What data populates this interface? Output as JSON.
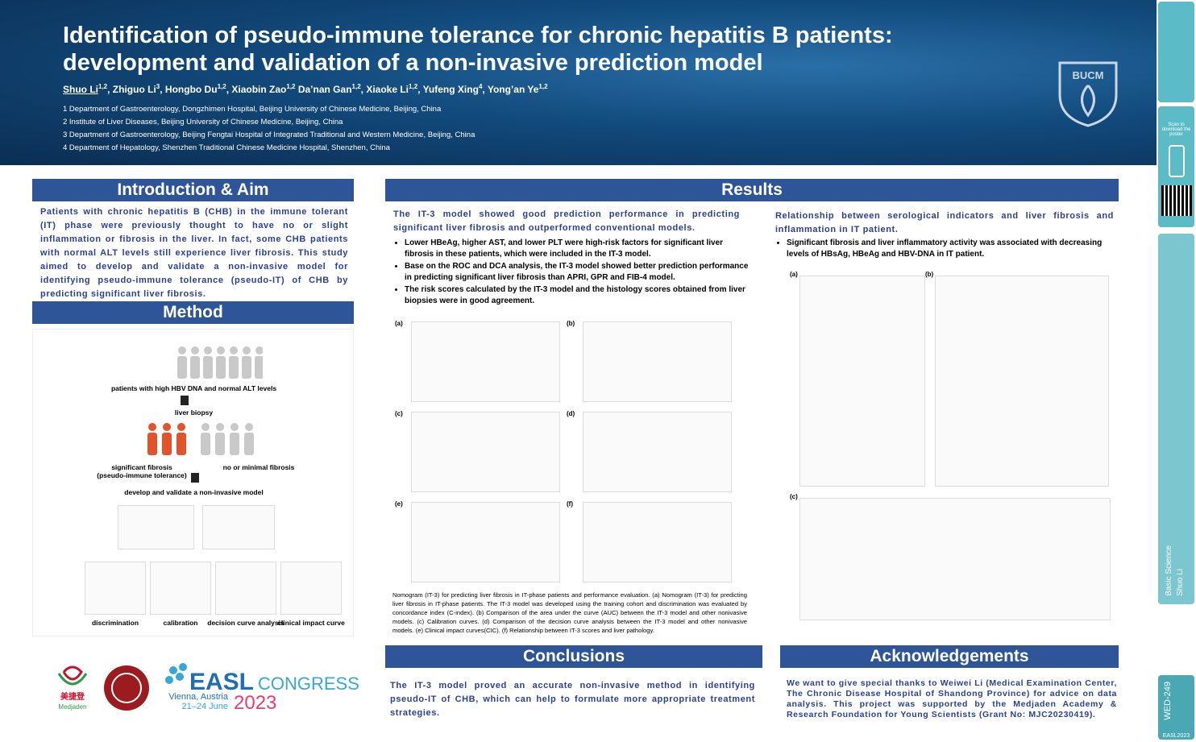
{
  "header": {
    "title_lines": [
      "Identification of pseudo-immune tolerance for chronic hepatitis B patients:",
      "development and validation of a non-invasive prediction model"
    ],
    "authors": [
      {
        "name": "Shuo Li",
        "sup": "1,2"
      },
      {
        "name": "Zhiguo Li",
        "sup": "3"
      },
      {
        "name": "Hongbo Du",
        "sup": "1,2"
      },
      {
        "name": "Xiaobin Zao",
        "sup": "1,2"
      },
      {
        "name": "Da’nan Gan",
        "sup": "1,2"
      },
      {
        "name": "Xiaoke Li",
        "sup": "1,2"
      },
      {
        "name": "Yufeng Xing",
        "sup": "4"
      },
      {
        "name": "Yong’an Ye",
        "sup": "1,2"
      }
    ],
    "affiliations": [
      "1 Department of Gastroenterology, Dongzhimen Hospital, Beijing University of Chinese Medicine, Beijing, China",
      "2 Institute of Liver Diseases, Beijing University of Chinese Medicine, Beijing, China",
      "3 Department of Gastroenterology, Beijing Fengtai Hospital of Integrated Traditional and Western Medicine, Beijing, China",
      "4 Department of Hepatology, Shenzhen Traditional Chinese Medicine Hospital, Shenzhen, China"
    ],
    "logo": "BUCM"
  },
  "intro": {
    "heading": "Introduction & Aim",
    "text": "Patients with chronic hepatitis B (CHB) in the immune tolerant (IT) phase were previously thought to have no or slight inflammation or fibrosis in the liver. In fact, some CHB patients with normal ALT levels still experience liver fibrosis. This study aimed to develop and validate a non-invasive model for identifying pseudo-immune tolerance (pseudo-IT) of CHB by predicting significant liver fibrosis."
  },
  "method": {
    "heading": "Method",
    "step1": "patients with high HBV DNA and normal ALT levels",
    "step2": "liver biopsy",
    "group_a": "significant fibrosis\n(pseudo-immune tolerance)",
    "group_b": "no or minimal fibrosis",
    "step3": "develop and validate a non-invasive model",
    "panels": [
      "discrimination",
      "calibration",
      "decision curve analysis",
      "clinical impact curve"
    ]
  },
  "results": {
    "heading": "Results",
    "left_subheading": "The IT-3 model showed good prediction performance in predicting significant liver fibrosis and outperformed conventional models.",
    "left_bullets": [
      "Lower HBeAg, higher AST, and lower PLT were high-risk factors for significant liver fibrosis in these patients, which were included in the IT-3 model.",
      "Base on the ROC and DCA analysis, the IT-3 model showed better prediction performance in predicting significant liver fibrosis than APRI, GPR and FIB-4 model.",
      "The risk scores calculated by the IT-3 model and the histology scores obtained from liver biopsies were in good agreement."
    ],
    "left_panels": [
      "(a)",
      "(b)",
      "(c)",
      "(d)",
      "(e)",
      "(f)"
    ],
    "caption": "Nomogram (IT-3) for predicting liver fibrosis in IT-phase patients and performance evaluation. (a) Nomogram (IT-3) for predicting liver fibrosis in IT-phase patients. The IT-3 model was developed using the training cohort and discrimination was evaluated by concordance index (C-index). (b) Comparison of the area under the curve (AUC) between the IT-3 model and other nonivasive models. (c) Calibration curves. (d) Comparison of the decision curve analysis between the IT-3 model and other nonivasive models. (e) Clinical impact curves(CIC). (f) Relationship between IT-3 scores and liver pathology.",
    "right_subheading": "Relationship between serological indicators and liver fibrosis and inflammation in IT patient.",
    "right_bullets": [
      "Significant fibrosis and liver inflammatory activity was associated with decreasing levels of HBsAg, HBeAg and HBV-DNA in IT patient."
    ],
    "right_panels": [
      "(a)",
      "(b)",
      "(c)"
    ]
  },
  "conclusions": {
    "heading": "Conclusions",
    "text": "The IT-3 model proved an accurate non-invasive method in identifying pseudo-IT of CHB, which can help to formulate more appropriate treatment strategies."
  },
  "acknowledgements": {
    "heading": "Acknowledgements",
    "text": "We want to give special thanks to Weiwei Li (Medical Examination Center, The Chronic Disease Hospital of Shandong Province) for advice on data analysis. This project was supported by the Medjaden Academy & Research Foundation for Young Scientists (Grant No: MJC20230419)."
  },
  "footer_logos": {
    "medjaden_cn": "美捷登",
    "medjaden": "Medjaden",
    "easl": "EASL",
    "congress": "CONGRESS",
    "city": "Vienna, Austria",
    "dates": "21–24 June",
    "year": "2023"
  },
  "sidebar": {
    "scan": "Scan to download the poster",
    "category": "Basic Science",
    "author": "Shuo Li",
    "code": "WED-249",
    "event": "EASL2023"
  }
}
